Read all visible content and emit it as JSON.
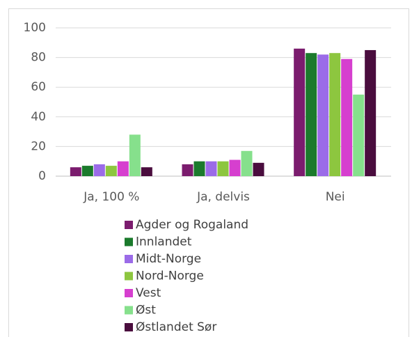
{
  "chart_data": {
    "type": "bar",
    "categories": [
      "Ja, 100 %",
      "Ja, delvis",
      "Nei"
    ],
    "series": [
      {
        "name": "Agder og Rogaland",
        "color": "#7b1c6e",
        "values": [
          6,
          8,
          86
        ]
      },
      {
        "name": "Innlandet",
        "color": "#1b7a2c",
        "values": [
          7,
          10,
          83
        ]
      },
      {
        "name": "Midt-Norge",
        "color": "#9b6be8",
        "values": [
          8,
          10,
          82
        ]
      },
      {
        "name": "Nord-Norge",
        "color": "#8dc63f",
        "values": [
          7,
          10,
          83
        ]
      },
      {
        "name": "Vest",
        "color": "#d63fcf",
        "values": [
          10,
          11,
          79
        ]
      },
      {
        "name": "Øst",
        "color": "#86e08c",
        "values": [
          28,
          17,
          55
        ]
      },
      {
        "name": "Østlandet Sør",
        "color": "#4a0d3e",
        "values": [
          6,
          9,
          85
        ]
      }
    ],
    "ylim": [
      0,
      100
    ],
    "yticks": [
      0,
      20,
      40,
      60,
      80,
      100
    ],
    "grid": true,
    "legend": "bottom"
  }
}
